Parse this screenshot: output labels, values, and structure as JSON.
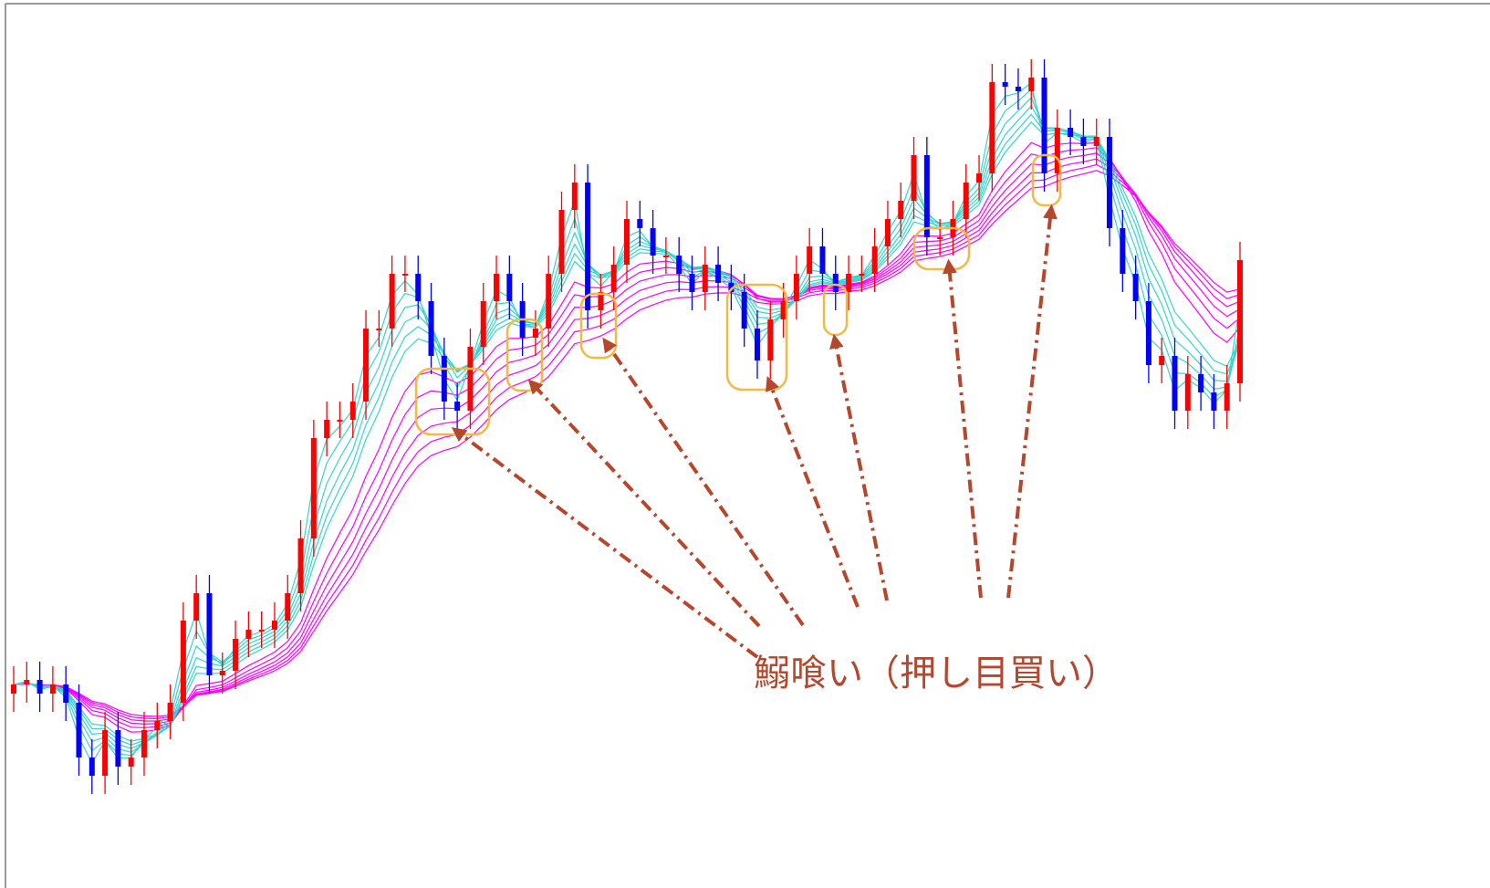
{
  "chart_data": {
    "type": "candlestick",
    "annotation": "鰯喰い（押し目買い）",
    "up_color": "#ff0000",
    "down_color": "#0000ff",
    "ma_fast_color": "#33d6cc",
    "ma_slow_color": "#ff00ff",
    "ylim": [
      3,
      100
    ],
    "open": [
      24,
      25,
      25.5,
      24,
      25,
      23,
      17,
      15,
      20,
      16,
      17,
      20,
      21,
      23,
      32,
      35,
      26,
      26.5,
      30,
      31,
      31,
      32,
      35,
      41,
      52,
      54,
      54,
      56,
      64,
      64,
      70,
      70,
      67,
      61,
      56,
      55,
      62,
      67,
      70,
      67,
      63,
      64,
      70,
      77,
      80,
      66,
      68,
      71,
      76,
      75,
      72,
      72,
      70,
      68,
      71,
      69,
      68,
      64,
      60.5,
      65,
      67,
      70,
      73,
      70,
      68,
      70,
      70,
      73,
      76,
      78,
      83,
      74,
      74,
      76,
      80,
      81,
      91,
      90.5,
      90,
      91.5,
      81,
      86,
      85,
      84,
      85,
      75,
      70,
      67,
      60,
      61,
      55,
      59,
      57,
      55,
      58
    ],
    "high": [
      27,
      27.5,
      27.5,
      27,
      27,
      25,
      19,
      22,
      22,
      19,
      22,
      23,
      25,
      34,
      37,
      37,
      28.5,
      32,
      33,
      33,
      34,
      37,
      43,
      54,
      56,
      56,
      58,
      66,
      66,
      72,
      72,
      72,
      69,
      63,
      58,
      64,
      69,
      72,
      72,
      69,
      66,
      72,
      79,
      82,
      82,
      70,
      73,
      78,
      78,
      77,
      74,
      74,
      72,
      73,
      73,
      71,
      70,
      66,
      67,
      69,
      72,
      75,
      75,
      72,
      72,
      72,
      75,
      78,
      80,
      85,
      85,
      76,
      78,
      82,
      83,
      93,
      93,
      92.5,
      93.5,
      93.5,
      88,
      88,
      87,
      87,
      87,
      77,
      72,
      69,
      63,
      63,
      61,
      61,
      59,
      60,
      73.5
    ],
    "low": [
      22,
      23,
      22,
      22,
      21,
      15,
      13,
      13,
      14,
      14,
      15,
      18,
      19,
      21,
      30,
      24,
      24,
      24.5,
      28,
      29,
      29,
      30,
      33,
      39,
      50,
      52,
      52,
      54,
      62,
      62,
      68,
      65,
      59,
      54,
      53,
      53,
      60,
      65,
      65,
      61,
      61,
      62,
      68,
      75,
      64,
      64,
      66,
      69,
      73,
      70,
      70,
      68,
      66,
      66,
      67,
      66,
      62,
      58.5,
      58.5,
      63,
      65,
      68,
      68,
      66,
      66,
      68,
      68,
      71,
      74,
      76,
      72,
      72,
      72,
      74,
      78,
      79,
      88.5,
      88,
      88,
      79,
      79,
      83,
      82,
      82,
      73,
      68,
      65,
      58,
      58,
      53,
      53,
      55,
      53,
      53,
      56
    ],
    "close": [
      25,
      25.5,
      24,
      25,
      23,
      17,
      15,
      20,
      16,
      17,
      20,
      21,
      23,
      32,
      35,
      26,
      26.5,
      30,
      31,
      31,
      32,
      35,
      41,
      52,
      54,
      54,
      56,
      64,
      64,
      70,
      70,
      67,
      61,
      56,
      55,
      62,
      67,
      70,
      67,
      63,
      64,
      70,
      77,
      80,
      66,
      68,
      71,
      76,
      75,
      72,
      72,
      70,
      68,
      71,
      69,
      68,
      64,
      60.5,
      65,
      67,
      70,
      73,
      70,
      68,
      70,
      70,
      73,
      76,
      78,
      83,
      74,
      74,
      76,
      80,
      81,
      91,
      90.5,
      90,
      91.5,
      81,
      86,
      85,
      84,
      85,
      75,
      70,
      67,
      60,
      61,
      55,
      59,
      57,
      55,
      58,
      71.5
    ]
  }
}
